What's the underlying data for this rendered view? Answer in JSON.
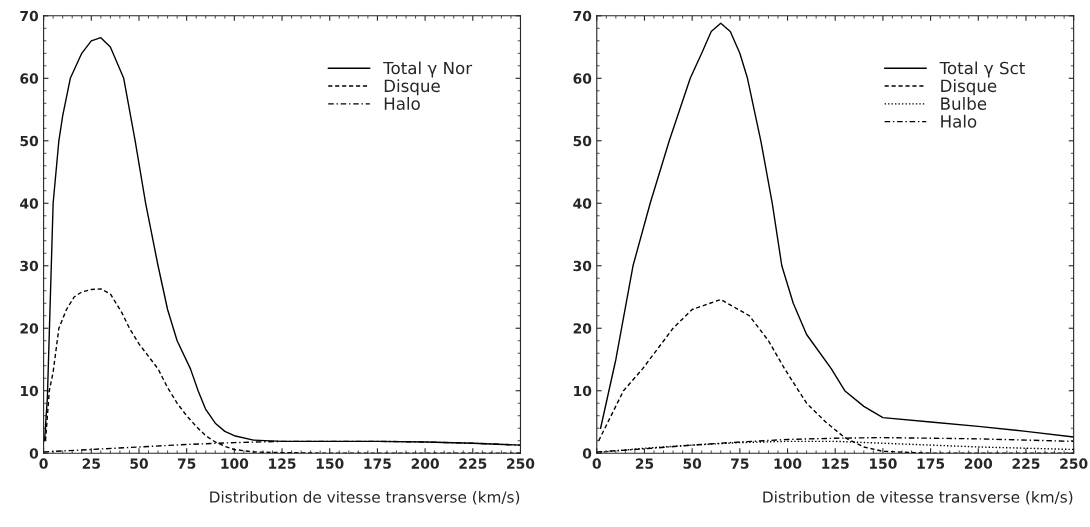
{
  "chart_data": [
    {
      "type": "line",
      "xlabel": "Distribution de vitesse transverse (km/s)",
      "xlim": [
        0,
        250
      ],
      "ylim": [
        0,
        70
      ],
      "xticks": [
        0,
        25,
        50,
        75,
        100,
        125,
        150,
        175,
        200,
        225,
        250
      ],
      "yticks": [
        0,
        10,
        20,
        30,
        40,
        50,
        60,
        70
      ],
      "legend": "top right",
      "grid": false,
      "series": [
        {
          "name": "Total γ Nor",
          "color": "#000000",
          "line_style": "solid",
          "x": [
            0.5,
            2,
            5,
            8,
            10,
            14,
            20,
            25,
            30,
            35,
            42,
            48,
            53.5,
            60,
            65,
            70,
            77,
            81,
            85,
            90,
            95,
            100,
            110,
            125,
            150,
            175,
            200,
            225,
            250
          ],
          "values": [
            2,
            9,
            40,
            50,
            54,
            60,
            64,
            66,
            66.5,
            65,
            60,
            50,
            40,
            30,
            23,
            18,
            13.5,
            10,
            7,
            4.8,
            3.5,
            2.8,
            2.1,
            1.9,
            1.9,
            1.9,
            1.8,
            1.6,
            1.3
          ]
        },
        {
          "name": "Disque",
          "color": "#000000",
          "line_style": "dashed",
          "x": [
            1,
            3,
            5,
            8,
            12,
            16,
            20,
            25,
            30,
            35,
            41,
            45,
            50,
            55,
            60,
            65,
            70,
            75,
            80,
            85,
            90,
            95,
            100,
            110,
            125,
            150,
            250
          ],
          "values": [
            2,
            10,
            13,
            20,
            23,
            25,
            25.8,
            26.2,
            26.3,
            25.5,
            22.5,
            20,
            17.5,
            15.5,
            13.5,
            10.5,
            8,
            6,
            4.3,
            2.8,
            1.8,
            1.1,
            0.6,
            0.2,
            0.1,
            0,
            0
          ]
        },
        {
          "name": "Halo",
          "color": "#000000",
          "line_style": "dashdot",
          "x": [
            0,
            25,
            50,
            75,
            100,
            125,
            150,
            175,
            200,
            225,
            250
          ],
          "values": [
            0.2,
            0.6,
            1.0,
            1.4,
            1.7,
            1.9,
            1.9,
            1.9,
            1.8,
            1.6,
            1.3
          ]
        }
      ]
    },
    {
      "type": "line",
      "xlabel": "Distribution de vitesse transverse (km/s)",
      "xlim": [
        0,
        250
      ],
      "ylim": [
        0,
        70
      ],
      "xticks": [
        0,
        25,
        50,
        75,
        100,
        125,
        150,
        175,
        200,
        225,
        250
      ],
      "yticks": [
        0,
        10,
        20,
        30,
        40,
        50,
        60,
        70
      ],
      "legend": "top right",
      "grid": false,
      "series": [
        {
          "name": "Total γ Sct",
          "color": "#000000",
          "line_style": "solid",
          "x": [
            2,
            10,
            19,
            28,
            38,
            49,
            55,
            60,
            65,
            70,
            75,
            79,
            86,
            92,
            97,
            103,
            110,
            123,
            130,
            140,
            150,
            175,
            200,
            225,
            250
          ],
          "values": [
            4,
            15,
            30,
            40,
            50,
            60,
            64,
            67.5,
            68.8,
            67.5,
            64,
            60,
            50,
            40,
            30,
            24,
            19,
            13.5,
            10,
            7.5,
            5.7,
            5,
            4.3,
            3.5,
            2.6
          ]
        },
        {
          "name": "Disque",
          "color": "#000000",
          "line_style": "dashed",
          "x": [
            1,
            14,
            24,
            40,
            50,
            65,
            80,
            90,
            98.5,
            110,
            120,
            130,
            140,
            150,
            175,
            250
          ],
          "values": [
            2,
            10,
            13.5,
            20,
            23,
            24.6,
            22,
            18,
            13.5,
            8,
            5,
            2.5,
            1,
            0.3,
            0,
            0
          ]
        },
        {
          "name": "Bulbe",
          "color": "#000000",
          "line_style": "dotted",
          "x": [
            0,
            25,
            50,
            75,
            100,
            125,
            150,
            200,
            250
          ],
          "values": [
            0.1,
            0.8,
            1.3,
            1.7,
            1.9,
            1.9,
            1.6,
            1.0,
            0.6
          ]
        },
        {
          "name": "Halo",
          "color": "#000000",
          "line_style": "dashdot",
          "x": [
            0,
            25,
            50,
            75,
            100,
            125,
            150,
            200,
            250
          ],
          "values": [
            0.2,
            0.7,
            1.3,
            1.8,
            2.2,
            2.4,
            2.5,
            2.3,
            1.9
          ]
        }
      ]
    }
  ]
}
